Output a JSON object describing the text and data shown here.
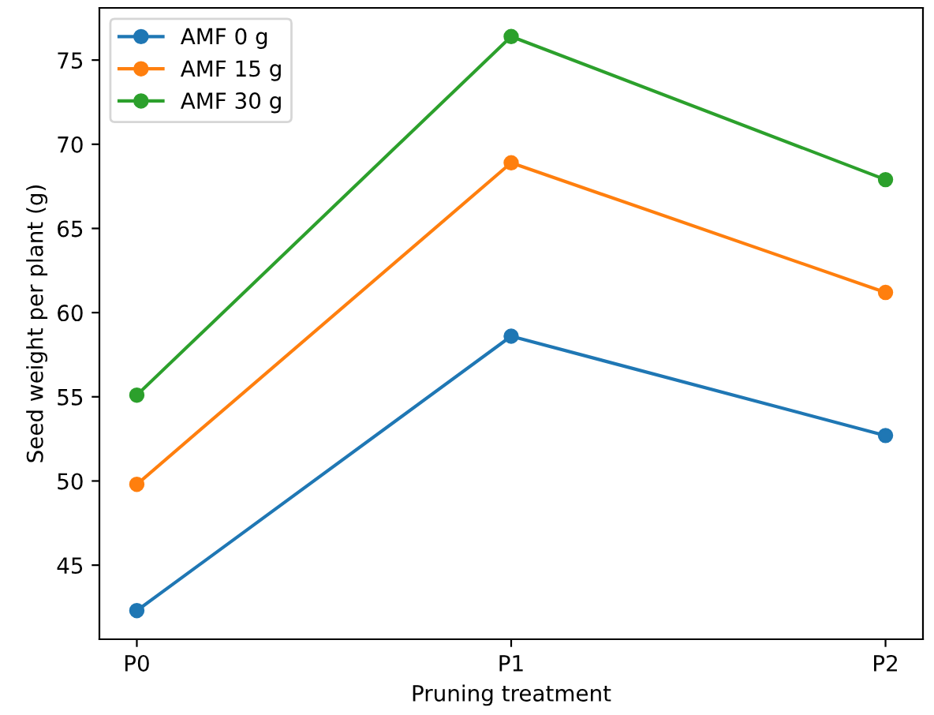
{
  "chart_data": {
    "type": "line",
    "xlabel": "Pruning treatment",
    "ylabel": "Seed weight per plant (g)",
    "categories": [
      "P0",
      "P1",
      "P2"
    ],
    "series": [
      {
        "name": "AMF 0 g",
        "color": "#1f77b4",
        "values": [
          42.3,
          58.6,
          52.7
        ]
      },
      {
        "name": "AMF 15 g",
        "color": "#ff7f0e",
        "values": [
          49.8,
          68.9,
          61.2
        ]
      },
      {
        "name": "AMF 30 g",
        "color": "#2ca02c",
        "values": [
          55.1,
          76.4,
          67.9
        ]
      }
    ],
    "ylim": [
      40.6,
      78.1
    ],
    "yticks": [
      45,
      50,
      55,
      60,
      65,
      70,
      75
    ],
    "marker": "circle",
    "line_style": "solid",
    "grid": false,
    "legend": "top left"
  }
}
